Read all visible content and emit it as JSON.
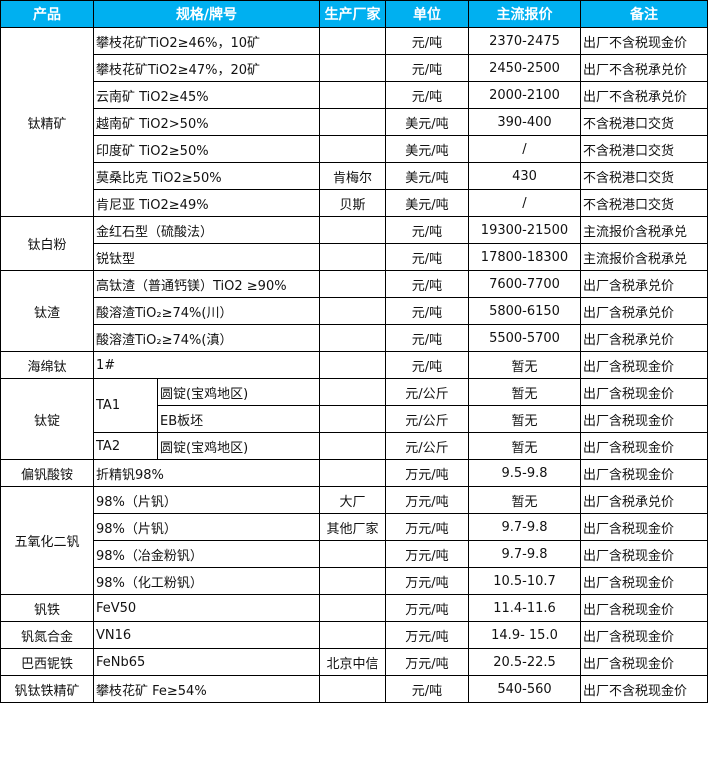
{
  "header": [
    "产品",
    "规格/牌号",
    "生产厂家",
    "单位",
    "主流报价",
    "备注"
  ],
  "colors": {
    "header_bg": "#00b0f0",
    "header_text": "#ffffff"
  },
  "groups": [
    {
      "product": "钛精矿",
      "items": [
        {
          "spec": "攀枝花矿TiO2≥46%，10矿",
          "maker": "",
          "unit": "元/吨",
          "price": "2370-2475",
          "note": "出厂不含税现金价"
        },
        {
          "spec": "攀枝花矿TiO2≥47%，20矿",
          "maker": "",
          "unit": "元/吨",
          "price": "2450-2500",
          "note": "出厂不含税承兑价"
        },
        {
          "spec": "云南矿 TiO2≥45%",
          "maker": "",
          "unit": "元/吨",
          "price": "2000-2100",
          "note": "出厂不含税承兑价"
        },
        {
          "spec": "越南矿 TiO2>50%",
          "maker": "",
          "unit": "美元/吨",
          "price": "390-400",
          "note": "不含税港口交货"
        },
        {
          "spec": "印度矿 TiO2≥50%",
          "maker": "",
          "unit": "美元/吨",
          "price": "/",
          "note": "不含税港口交货"
        },
        {
          "spec": "莫桑比克 TiO2≥50%",
          "maker": "肯梅尔",
          "unit": "美元/吨",
          "price": "430",
          "note": "不含税港口交货"
        },
        {
          "spec": "肯尼亚 TiO2≥49%",
          "maker": "贝斯",
          "unit": "美元/吨",
          "price": "/",
          "note": "不含税港口交货"
        }
      ]
    },
    {
      "product": "钛白粉",
      "items": [
        {
          "spec": "金红石型（硫酸法）",
          "maker": "",
          "unit": "元/吨",
          "price": "19300-21500",
          "note": "主流报价含税承兑"
        },
        {
          "spec": "锐钛型",
          "maker": "",
          "unit": "元/吨",
          "price": "17800-18300",
          "note": "主流报价含税承兑"
        }
      ]
    },
    {
      "product": "钛渣",
      "items": [
        {
          "spec": "高钛渣（普通钙镁）TiO2 ≥90%",
          "maker": "",
          "unit": "元/吨",
          "price": "7600-7700",
          "note": "出厂含税承兑价"
        },
        {
          "spec": "酸溶渣TiO₂≥74%(川）",
          "maker": "",
          "unit": "元/吨",
          "price": "5800-6150",
          "note": "出厂含税承兑价"
        },
        {
          "spec": "酸溶渣TiO₂≥74%(滇）",
          "maker": "",
          "unit": "元/吨",
          "price": "5500-5700",
          "note": "出厂含税承兑价"
        }
      ]
    },
    {
      "product": "海绵钛",
      "items": [
        {
          "spec": "1#",
          "maker": "",
          "unit": "元/吨",
          "price": "暂无",
          "note": "出厂含税现金价"
        }
      ]
    },
    {
      "product": "钛锭",
      "grades": [
        {
          "grade": "TA1",
          "items": [
            {
              "spec": "圆锭(宝鸡地区)",
              "maker": "",
              "unit": "元/公斤",
              "price": "暂无",
              "note": "出厂含税现金价"
            },
            {
              "spec": "EB板坯",
              "maker": "",
              "unit": "元/公斤",
              "price": "暂无",
              "note": "出厂含税现金价"
            }
          ]
        },
        {
          "grade": "TA2",
          "items": [
            {
              "spec": "圆锭(宝鸡地区)",
              "maker": "",
              "unit": "元/公斤",
              "price": "暂无",
              "note": "出厂含税现金价"
            }
          ]
        }
      ]
    },
    {
      "product": "偏钒酸铵",
      "items": [
        {
          "spec": "折精钒98%",
          "maker": "",
          "unit": "万元/吨",
          "price": "9.5-9.8",
          "note": "出厂含税现金价"
        }
      ]
    },
    {
      "product": "五氧化二钒",
      "items": [
        {
          "spec": "98%（片钒）",
          "maker": "大厂",
          "unit": "万元/吨",
          "price": "暂无",
          "note": "出厂含税承兑价"
        },
        {
          "spec": "98%（片钒）",
          "maker": "其他厂家",
          "unit": "万元/吨",
          "price": "9.7-9.8",
          "note": "出厂含税现金价"
        },
        {
          "spec": "98%（冶金粉钒）",
          "maker": "",
          "unit": "万元/吨",
          "price": "9.7-9.8",
          "note": "出厂含税现金价"
        },
        {
          "spec": "98%（化工粉钒）",
          "maker": "",
          "unit": "万元/吨",
          "price": "10.5-10.7",
          "note": "出厂含税现金价"
        }
      ]
    },
    {
      "product": "钒铁",
      "items": [
        {
          "spec": "FeV50",
          "maker": "",
          "unit": "万元/吨",
          "price": "11.4-11.6",
          "note": "出厂含税现金价"
        }
      ]
    },
    {
      "product": "钒氮合金",
      "items": [
        {
          "spec": "VN16",
          "maker": "",
          "unit": "万元/吨",
          "price": "14.9- 15.0",
          "note": "出厂含税现金价"
        }
      ]
    },
    {
      "product": "巴西铌铁",
      "items": [
        {
          "spec": "FeNb65",
          "maker": "北京中信",
          "unit": "万元/吨",
          "price": "20.5-22.5",
          "note": "出厂含税现金价"
        }
      ]
    },
    {
      "product": "钒钛铁精矿",
      "items": [
        {
          "spec": "攀枝花矿 Fe≥54%",
          "maker": "",
          "unit": "元/吨",
          "price": "540-560",
          "note": "出厂不含税现金价"
        }
      ]
    }
  ]
}
